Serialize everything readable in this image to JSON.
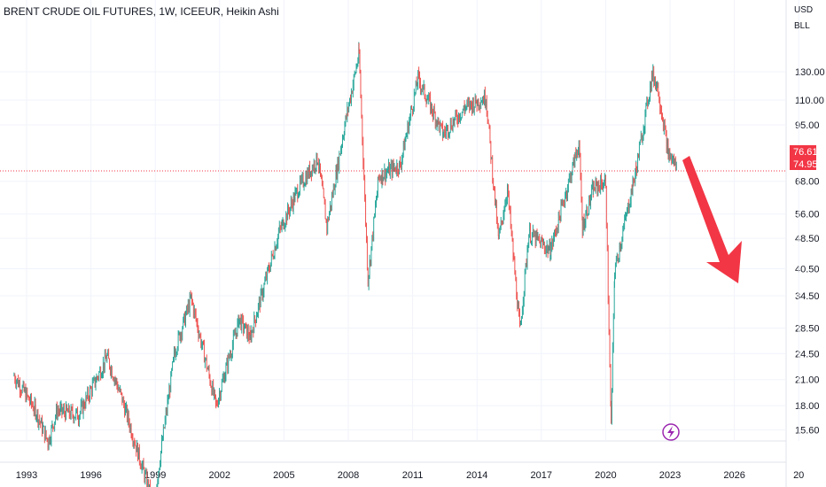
{
  "chart_data": {
    "type": "candlestick",
    "title": "BRENT CRUDE OIL FUTURES, 1W, ICEEUR, Heikin Ashi",
    "currency": "USD",
    "unit": "BLL",
    "y_scale": "log",
    "y_ticks": [
      "130.00",
      "110.00",
      "95.00",
      "68.00",
      "56.00",
      "48.50",
      "40.50",
      "34.50",
      "28.50",
      "24.50",
      "21.00",
      "18.00",
      "15.60"
    ],
    "x_ticks": [
      "1993",
      "1996",
      "1999",
      "2002",
      "2005",
      "2008",
      "2011",
      "2014",
      "2017",
      "2020",
      "2023",
      "2026",
      "20"
    ],
    "last_price": "76.61",
    "prev_price": "74.95",
    "colors": {
      "up": "#26a69a",
      "down": "#ef5350",
      "arrow": "#f23645",
      "badge": "#9c27b0",
      "grid": "#f0f3fa",
      "text": "#131722"
    },
    "annotation": "down-arrow",
    "series": [
      {
        "date": "1992-06",
        "close": 21.5
      },
      {
        "date": "1993-06",
        "close": 17.5
      },
      {
        "date": "1994-01",
        "close": 14.5
      },
      {
        "date": "1994-06",
        "close": 17.5
      },
      {
        "date": "1995-06",
        "close": 17.0
      },
      {
        "date": "1996-10",
        "close": 24.0
      },
      {
        "date": "1997-06",
        "close": 19.0
      },
      {
        "date": "1998-12",
        "close": 10.0
      },
      {
        "date": "1999-12",
        "close": 25.0
      },
      {
        "date": "2000-09",
        "close": 34.0
      },
      {
        "date": "2001-11",
        "close": 18.0
      },
      {
        "date": "2002-12",
        "close": 30.0
      },
      {
        "date": "2003-06",
        "close": 27.0
      },
      {
        "date": "2004-10",
        "close": 50.0
      },
      {
        "date": "2005-09",
        "close": 65.0
      },
      {
        "date": "2006-08",
        "close": 78.0
      },
      {
        "date": "2007-01",
        "close": 52.0
      },
      {
        "date": "2007-11",
        "close": 95.0
      },
      {
        "date": "2008-07",
        "close": 145.0
      },
      {
        "date": "2008-12",
        "close": 38.0
      },
      {
        "date": "2009-06",
        "close": 70.0
      },
      {
        "date": "2010-06",
        "close": 75.0
      },
      {
        "date": "2011-04",
        "close": 125.0
      },
      {
        "date": "2012-06",
        "close": 90.0
      },
      {
        "date": "2013-06",
        "close": 105.0
      },
      {
        "date": "2014-06",
        "close": 112.0
      },
      {
        "date": "2015-01",
        "close": 48.0
      },
      {
        "date": "2015-06",
        "close": 65.0
      },
      {
        "date": "2016-01",
        "close": 28.0
      },
      {
        "date": "2016-06",
        "close": 50.0
      },
      {
        "date": "2017-06",
        "close": 45.0
      },
      {
        "date": "2018-10",
        "close": 85.0
      },
      {
        "date": "2018-12",
        "close": 52.0
      },
      {
        "date": "2019-06",
        "close": 65.0
      },
      {
        "date": "2020-01",
        "close": 68.0
      },
      {
        "date": "2020-04",
        "close": 16.0
      },
      {
        "date": "2020-06",
        "close": 40.0
      },
      {
        "date": "2021-06",
        "close": 73.0
      },
      {
        "date": "2022-03",
        "close": 128.0
      },
      {
        "date": "2022-06",
        "close": 120.0
      },
      {
        "date": "2022-12",
        "close": 80.0
      },
      {
        "date": "2023-05",
        "close": 74.0
      }
    ]
  }
}
